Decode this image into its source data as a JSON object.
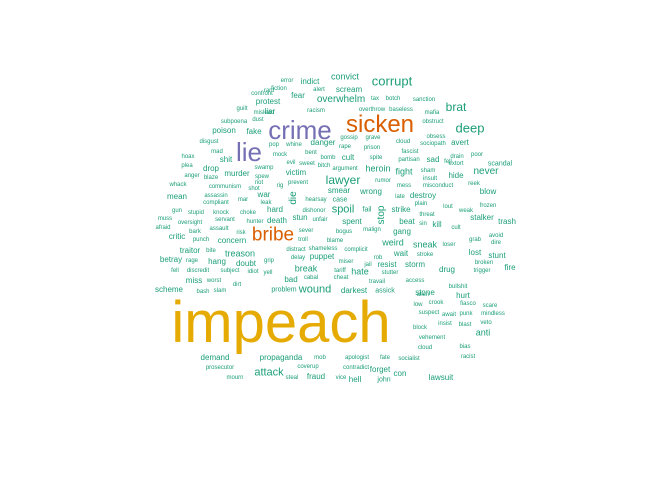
{
  "colors": {
    "teal": "#1b9e77",
    "orange": "#d95f02",
    "purple": "#7570b3",
    "gold": "#e6ab02",
    "background": "#ffffff"
  },
  "words": [
    {
      "text": "impeach",
      "weight": 100,
      "color": "gold"
    },
    {
      "text": "crime",
      "weight": 40,
      "color": "purple"
    },
    {
      "text": "sicken",
      "weight": 38,
      "color": "orange"
    },
    {
      "text": "lie",
      "weight": 38,
      "color": "purple"
    },
    {
      "text": "bribe",
      "weight": 30,
      "color": "orange"
    },
    {
      "text": "corrupt",
      "weight": 20,
      "color": "teal"
    },
    {
      "text": "deep",
      "weight": 18,
      "color": "teal"
    },
    {
      "text": "lawyer",
      "weight": 17,
      "color": "teal"
    },
    {
      "text": "brat",
      "weight": 16,
      "color": "teal"
    },
    {
      "text": "wound",
      "weight": 16,
      "color": "teal"
    },
    {
      "text": "overwhelm",
      "weight": 14,
      "color": "teal"
    },
    {
      "text": "spoil",
      "weight": 14,
      "color": "teal"
    },
    {
      "text": "attack",
      "weight": 14,
      "color": "teal"
    },
    {
      "text": "never",
      "weight": 13,
      "color": "teal"
    },
    {
      "text": "weird",
      "weight": 12,
      "color": "teal"
    },
    {
      "text": "heroin",
      "weight": 12,
      "color": "teal"
    },
    {
      "text": "convict",
      "weight": 12,
      "color": "teal"
    },
    {
      "text": "treason",
      "weight": 12,
      "color": "teal"
    },
    {
      "text": "hate",
      "weight": 12,
      "color": "teal"
    },
    {
      "text": "stop",
      "weight": 12,
      "color": "teal"
    },
    {
      "text": "die",
      "weight": 12,
      "color": "teal"
    },
    {
      "text": "fight",
      "weight": 11,
      "color": "teal"
    },
    {
      "text": "stone",
      "weight": 11,
      "color": "teal"
    },
    {
      "text": "sneak",
      "weight": 11,
      "color": "teal"
    },
    {
      "text": "smear",
      "weight": 11,
      "color": "teal"
    },
    {
      "text": "wrong",
      "weight": 11,
      "color": "teal"
    },
    {
      "text": "break",
      "weight": 11,
      "color": "teal"
    },
    {
      "text": "anti",
      "weight": 11,
      "color": "teal"
    },
    {
      "text": "fire",
      "weight": 11,
      "color": "teal"
    },
    {
      "text": "scream",
      "weight": 10,
      "color": "teal"
    },
    {
      "text": "danger",
      "weight": 10,
      "color": "teal"
    },
    {
      "text": "cult",
      "weight": 10,
      "color": "teal"
    },
    {
      "text": "spent",
      "weight": 10,
      "color": "teal"
    },
    {
      "text": "indict",
      "weight": 10,
      "color": "teal"
    },
    {
      "text": "fear",
      "weight": 10,
      "color": "teal"
    },
    {
      "text": "protest",
      "weight": 10,
      "color": "teal"
    },
    {
      "text": "poison",
      "weight": 10,
      "color": "teal"
    },
    {
      "text": "liar",
      "weight": 10,
      "color": "teal"
    },
    {
      "text": "fake",
      "weight": 10,
      "color": "teal"
    },
    {
      "text": "sad",
      "weight": 10,
      "color": "teal"
    },
    {
      "text": "hide",
      "weight": 10,
      "color": "teal"
    },
    {
      "text": "avert",
      "weight": 10,
      "color": "teal"
    },
    {
      "text": "blow",
      "weight": 10,
      "color": "teal"
    },
    {
      "text": "stalker",
      "weight": 10,
      "color": "teal"
    },
    {
      "text": "trash",
      "weight": 10,
      "color": "teal"
    },
    {
      "text": "lost",
      "weight": 10,
      "color": "teal"
    },
    {
      "text": "stunt",
      "weight": 10,
      "color": "teal"
    },
    {
      "text": "hurt",
      "weight": 10,
      "color": "teal"
    },
    {
      "text": "lawsuit",
      "weight": 10,
      "color": "teal"
    },
    {
      "text": "fraud",
      "weight": 10,
      "color": "teal"
    },
    {
      "text": "forget",
      "weight": 10,
      "color": "teal"
    },
    {
      "text": "hell",
      "weight": 10,
      "color": "teal"
    },
    {
      "text": "con",
      "weight": 10,
      "color": "teal"
    },
    {
      "text": "john",
      "weight": 9,
      "color": "teal"
    },
    {
      "text": "demand",
      "weight": 10,
      "color": "teal"
    },
    {
      "text": "propaganda",
      "weight": 10,
      "color": "teal"
    },
    {
      "text": "scheme",
      "weight": 10,
      "color": "teal"
    },
    {
      "text": "miss",
      "weight": 10,
      "color": "teal"
    },
    {
      "text": "hang",
      "weight": 10,
      "color": "teal"
    },
    {
      "text": "doubt",
      "weight": 10,
      "color": "teal"
    },
    {
      "text": "concern",
      "weight": 10,
      "color": "teal"
    },
    {
      "text": "traitor",
      "weight": 10,
      "color": "teal"
    },
    {
      "text": "betray",
      "weight": 10,
      "color": "teal"
    },
    {
      "text": "critic",
      "weight": 10,
      "color": "teal"
    },
    {
      "text": "hard",
      "weight": 10,
      "color": "teal"
    },
    {
      "text": "war",
      "weight": 10,
      "color": "teal"
    },
    {
      "text": "death",
      "weight": 10,
      "color": "teal"
    },
    {
      "text": "stun",
      "weight": 10,
      "color": "teal"
    },
    {
      "text": "murder",
      "weight": 10,
      "color": "teal"
    },
    {
      "text": "drop",
      "weight": 10,
      "color": "teal"
    },
    {
      "text": "shit",
      "weight": 10,
      "color": "teal"
    },
    {
      "text": "mean",
      "weight": 10,
      "color": "teal"
    },
    {
      "text": "victim",
      "weight": 10,
      "color": "teal"
    },
    {
      "text": "puppet",
      "weight": 10,
      "color": "teal"
    },
    {
      "text": "bad",
      "weight": 10,
      "color": "teal"
    },
    {
      "text": "darkest",
      "weight": 10,
      "color": "teal"
    },
    {
      "text": "assick",
      "weight": 9,
      "color": "teal"
    },
    {
      "text": "resist",
      "weight": 10,
      "color": "teal"
    },
    {
      "text": "storm",
      "weight": 10,
      "color": "teal"
    },
    {
      "text": "wait",
      "weight": 10,
      "color": "teal"
    },
    {
      "text": "drug",
      "weight": 10,
      "color": "teal"
    },
    {
      "text": "beat",
      "weight": 10,
      "color": "teal"
    },
    {
      "text": "kill",
      "weight": 10,
      "color": "teal"
    },
    {
      "text": "gang",
      "weight": 10,
      "color": "teal"
    },
    {
      "text": "strike",
      "weight": 10,
      "color": "teal"
    },
    {
      "text": "destroy",
      "weight": 10,
      "color": "teal"
    },
    {
      "text": "scandal",
      "weight": 9,
      "color": "teal"
    },
    {
      "text": "fail",
      "weight": 9,
      "color": "teal"
    },
    {
      "text": "problem",
      "weight": 9,
      "color": "teal"
    },
    {
      "text": "botch",
      "weight": 8,
      "color": "teal"
    },
    {
      "text": "tax",
      "weight": 8,
      "color": "teal"
    },
    {
      "text": "sanction",
      "weight": 7,
      "color": "teal"
    },
    {
      "text": "alert",
      "weight": 7,
      "color": "teal"
    },
    {
      "text": "racism",
      "weight": 7,
      "color": "teal"
    },
    {
      "text": "bomb",
      "weight": 7,
      "color": "teal"
    },
    {
      "text": "argument",
      "weight": 7,
      "color": "teal"
    },
    {
      "text": "case",
      "weight": 8,
      "color": "teal"
    },
    {
      "text": "bitch",
      "weight": 7,
      "color": "teal"
    },
    {
      "text": "baseless",
      "weight": 7,
      "color": "teal"
    },
    {
      "text": "mafia",
      "weight": 7,
      "color": "teal"
    },
    {
      "text": "obstruct",
      "weight": 7,
      "color": "teal"
    },
    {
      "text": "obsess",
      "weight": 7,
      "color": "teal"
    },
    {
      "text": "sociopath",
      "weight": 7,
      "color": "teal"
    },
    {
      "text": "drain",
      "weight": 7,
      "color": "teal"
    },
    {
      "text": "poor",
      "weight": 7,
      "color": "teal"
    },
    {
      "text": "reek",
      "weight": 7,
      "color": "teal"
    },
    {
      "text": "frozen",
      "weight": 7,
      "color": "teal"
    },
    {
      "text": "avoid",
      "weight": 7,
      "color": "teal"
    },
    {
      "text": "dire",
      "weight": 7,
      "color": "teal"
    },
    {
      "text": "scare",
      "weight": 7,
      "color": "teal"
    },
    {
      "text": "punk",
      "weight": 7,
      "color": "teal"
    },
    {
      "text": "mindless",
      "weight": 7,
      "color": "teal"
    },
    {
      "text": "veto",
      "weight": 7,
      "color": "teal"
    },
    {
      "text": "blast",
      "weight": 7,
      "color": "teal"
    },
    {
      "text": "bias",
      "weight": 7,
      "color": "teal"
    },
    {
      "text": "racist",
      "weight": 7,
      "color": "teal"
    },
    {
      "text": "fiasco",
      "weight": 7,
      "color": "teal"
    },
    {
      "text": "broken",
      "weight": 7,
      "color": "teal"
    },
    {
      "text": "trigger",
      "weight": 7,
      "color": "teal"
    },
    {
      "text": "suspect",
      "weight": 7,
      "color": "teal"
    },
    {
      "text": "insist",
      "weight": 7,
      "color": "teal"
    },
    {
      "text": "block",
      "weight": 7,
      "color": "teal"
    },
    {
      "text": "vehement",
      "weight": 7,
      "color": "teal"
    },
    {
      "text": "cloud",
      "weight": 7,
      "color": "teal"
    },
    {
      "text": "socialist",
      "weight": 7,
      "color": "teal"
    },
    {
      "text": "apologist",
      "weight": 7,
      "color": "teal"
    },
    {
      "text": "fate",
      "weight": 7,
      "color": "teal"
    },
    {
      "text": "contradict",
      "weight": 7,
      "color": "teal"
    },
    {
      "text": "vice",
      "weight": 7,
      "color": "teal"
    },
    {
      "text": "mob",
      "weight": 7,
      "color": "teal"
    },
    {
      "text": "coverup",
      "weight": 7,
      "color": "teal"
    },
    {
      "text": "steal",
      "weight": 7,
      "color": "teal"
    },
    {
      "text": "prosecutor",
      "weight": 7,
      "color": "teal"
    },
    {
      "text": "mourn",
      "weight": 7,
      "color": "teal"
    },
    {
      "text": "slam",
      "weight": 7,
      "color": "teal"
    },
    {
      "text": "dirt",
      "weight": 7,
      "color": "teal"
    },
    {
      "text": "fell",
      "weight": 7,
      "color": "teal"
    },
    {
      "text": "discredit",
      "weight": 7,
      "color": "teal"
    },
    {
      "text": "worst",
      "weight": 7,
      "color": "teal"
    },
    {
      "text": "bash",
      "weight": 7,
      "color": "teal"
    },
    {
      "text": "rage",
      "weight": 7,
      "color": "teal"
    },
    {
      "text": "punch",
      "weight": 7,
      "color": "teal"
    },
    {
      "text": "stupid",
      "weight": 7,
      "color": "teal"
    },
    {
      "text": "knock",
      "weight": 7,
      "color": "teal"
    },
    {
      "text": "assault",
      "weight": 7,
      "color": "teal"
    },
    {
      "text": "muss",
      "weight": 7,
      "color": "teal"
    },
    {
      "text": "oversight",
      "weight": 7,
      "color": "teal"
    },
    {
      "text": "afraid",
      "weight": 7,
      "color": "teal"
    },
    {
      "text": "bark",
      "weight": 7,
      "color": "teal"
    },
    {
      "text": "gun",
      "weight": 7,
      "color": "teal"
    },
    {
      "text": "whack",
      "weight": 7,
      "color": "teal"
    },
    {
      "text": "anger",
      "weight": 7,
      "color": "teal"
    },
    {
      "text": "hoax",
      "weight": 7,
      "color": "teal"
    },
    {
      "text": "plea",
      "weight": 7,
      "color": "teal"
    },
    {
      "text": "disgust",
      "weight": 7,
      "color": "teal"
    },
    {
      "text": "blaze",
      "weight": 7,
      "color": "teal"
    },
    {
      "text": "communism",
      "weight": 7,
      "color": "teal"
    },
    {
      "text": "assassin",
      "weight": 7,
      "color": "teal"
    },
    {
      "text": "compliant",
      "weight": 7,
      "color": "teal"
    },
    {
      "text": "servant",
      "weight": 7,
      "color": "teal"
    },
    {
      "text": "mad",
      "weight": 7,
      "color": "teal"
    },
    {
      "text": "riot",
      "weight": 7,
      "color": "teal"
    },
    {
      "text": "subpoena",
      "weight": 7,
      "color": "teal"
    },
    {
      "text": "guilt",
      "weight": 7,
      "color": "teal"
    },
    {
      "text": "mislead",
      "weight": 7,
      "color": "teal"
    },
    {
      "text": "dust",
      "weight": 7,
      "color": "teal"
    },
    {
      "text": "rant",
      "weight": 7,
      "color": "teal"
    },
    {
      "text": "confront",
      "weight": 7,
      "color": "teal"
    },
    {
      "text": "fiction",
      "weight": 7,
      "color": "teal"
    },
    {
      "text": "error",
      "weight": 7,
      "color": "teal"
    },
    {
      "text": "swamp",
      "weight": 7,
      "color": "teal"
    },
    {
      "text": "mock",
      "weight": 7,
      "color": "teal"
    },
    {
      "text": "pop",
      "weight": 7,
      "color": "teal"
    },
    {
      "text": "whine",
      "weight": 7,
      "color": "teal"
    },
    {
      "text": "spew",
      "weight": 7,
      "color": "teal"
    },
    {
      "text": "evil",
      "weight": 7,
      "color": "teal"
    },
    {
      "text": "sweet",
      "weight": 7,
      "color": "teal"
    },
    {
      "text": "shot",
      "weight": 7,
      "color": "teal"
    },
    {
      "text": "rig",
      "weight": 7,
      "color": "teal"
    },
    {
      "text": "prevent",
      "weight": 7,
      "color": "teal"
    },
    {
      "text": "leak",
      "weight": 7,
      "color": "teal"
    },
    {
      "text": "mar",
      "weight": 7,
      "color": "teal"
    },
    {
      "text": "choke",
      "weight": 7,
      "color": "teal"
    },
    {
      "text": "risk",
      "weight": 7,
      "color": "teal"
    },
    {
      "text": "hunter",
      "weight": 7,
      "color": "teal"
    },
    {
      "text": "bite",
      "weight": 7,
      "color": "teal"
    },
    {
      "text": "grip",
      "weight": 7,
      "color": "teal"
    },
    {
      "text": "yell",
      "weight": 7,
      "color": "teal"
    },
    {
      "text": "idiot",
      "weight": 7,
      "color": "teal"
    },
    {
      "text": "subject",
      "weight": 7,
      "color": "teal"
    },
    {
      "text": "distract",
      "weight": 7,
      "color": "teal"
    },
    {
      "text": "delay",
      "weight": 7,
      "color": "teal"
    },
    {
      "text": "shameless",
      "weight": 7,
      "color": "teal"
    },
    {
      "text": "cabal",
      "weight": 7,
      "color": "teal"
    },
    {
      "text": "troll",
      "weight": 7,
      "color": "teal"
    },
    {
      "text": "sever",
      "weight": 7,
      "color": "teal"
    },
    {
      "text": "unfair",
      "weight": 7,
      "color": "teal"
    },
    {
      "text": "dishonor",
      "weight": 7,
      "color": "teal"
    },
    {
      "text": "hearsay",
      "weight": 7,
      "color": "teal"
    },
    {
      "text": "blame",
      "weight": 7,
      "color": "teal"
    },
    {
      "text": "bogus",
      "weight": 7,
      "color": "teal"
    },
    {
      "text": "malign",
      "weight": 7,
      "color": "teal"
    },
    {
      "text": "complicit",
      "weight": 7,
      "color": "teal"
    },
    {
      "text": "tariff",
      "weight": 7,
      "color": "teal"
    },
    {
      "text": "miser",
      "weight": 7,
      "color": "teal"
    },
    {
      "text": "cheat",
      "weight": 7,
      "color": "teal"
    },
    {
      "text": "jail",
      "weight": 7,
      "color": "teal"
    },
    {
      "text": "rob",
      "weight": 7,
      "color": "teal"
    },
    {
      "text": "travail",
      "weight": 7,
      "color": "teal"
    },
    {
      "text": "stutter",
      "weight": 7,
      "color": "teal"
    },
    {
      "text": "access",
      "weight": 7,
      "color": "teal"
    },
    {
      "text": "stroke",
      "weight": 7,
      "color": "teal"
    },
    {
      "text": "alien",
      "weight": 7,
      "color": "teal"
    },
    {
      "text": "low",
      "weight": 7,
      "color": "teal"
    },
    {
      "text": "crook",
      "weight": 7,
      "color": "teal"
    },
    {
      "text": "bullshit",
      "weight": 7,
      "color": "teal"
    },
    {
      "text": "loser",
      "weight": 7,
      "color": "teal"
    },
    {
      "text": "threat",
      "weight": 7,
      "color": "teal"
    },
    {
      "text": "weak",
      "weight": 7,
      "color": "teal"
    },
    {
      "text": "grab",
      "weight": 7,
      "color": "teal"
    },
    {
      "text": "cult",
      "weight": 7,
      "color": "teal"
    },
    {
      "text": "mess",
      "weight": 7,
      "color": "teal"
    },
    {
      "text": "misconduct",
      "weight": 7,
      "color": "teal"
    },
    {
      "text": "late",
      "weight": 7,
      "color": "teal"
    },
    {
      "text": "plain",
      "weight": 7,
      "color": "teal"
    },
    {
      "text": "lout",
      "weight": 7,
      "color": "teal"
    },
    {
      "text": "sin",
      "weight": 7,
      "color": "teal"
    },
    {
      "text": "insult",
      "weight": 7,
      "color": "teal"
    },
    {
      "text": "sham",
      "weight": 7,
      "color": "teal"
    },
    {
      "text": "extort",
      "weight": 7,
      "color": "teal"
    },
    {
      "text": "fascist",
      "weight": 7,
      "color": "teal"
    },
    {
      "text": "partisan",
      "weight": 7,
      "color": "teal"
    },
    {
      "text": "cloud",
      "weight": 7,
      "color": "teal"
    },
    {
      "text": "spite",
      "weight": 7,
      "color": "teal"
    },
    {
      "text": "grave",
      "weight": 7,
      "color": "teal"
    },
    {
      "text": "gossip",
      "weight": 7,
      "color": "teal"
    },
    {
      "text": "rape",
      "weight": 7,
      "color": "teal"
    },
    {
      "text": "prison",
      "weight": 7,
      "color": "teal"
    },
    {
      "text": "rumor",
      "weight": 7,
      "color": "teal"
    },
    {
      "text": "overthrow",
      "weight": 7,
      "color": "teal"
    },
    {
      "text": "await",
      "weight": 7,
      "color": "teal"
    },
    {
      "text": "fell",
      "weight": 7,
      "color": "teal"
    },
    {
      "text": "bent",
      "weight": 7,
      "color": "teal"
    }
  ]
}
